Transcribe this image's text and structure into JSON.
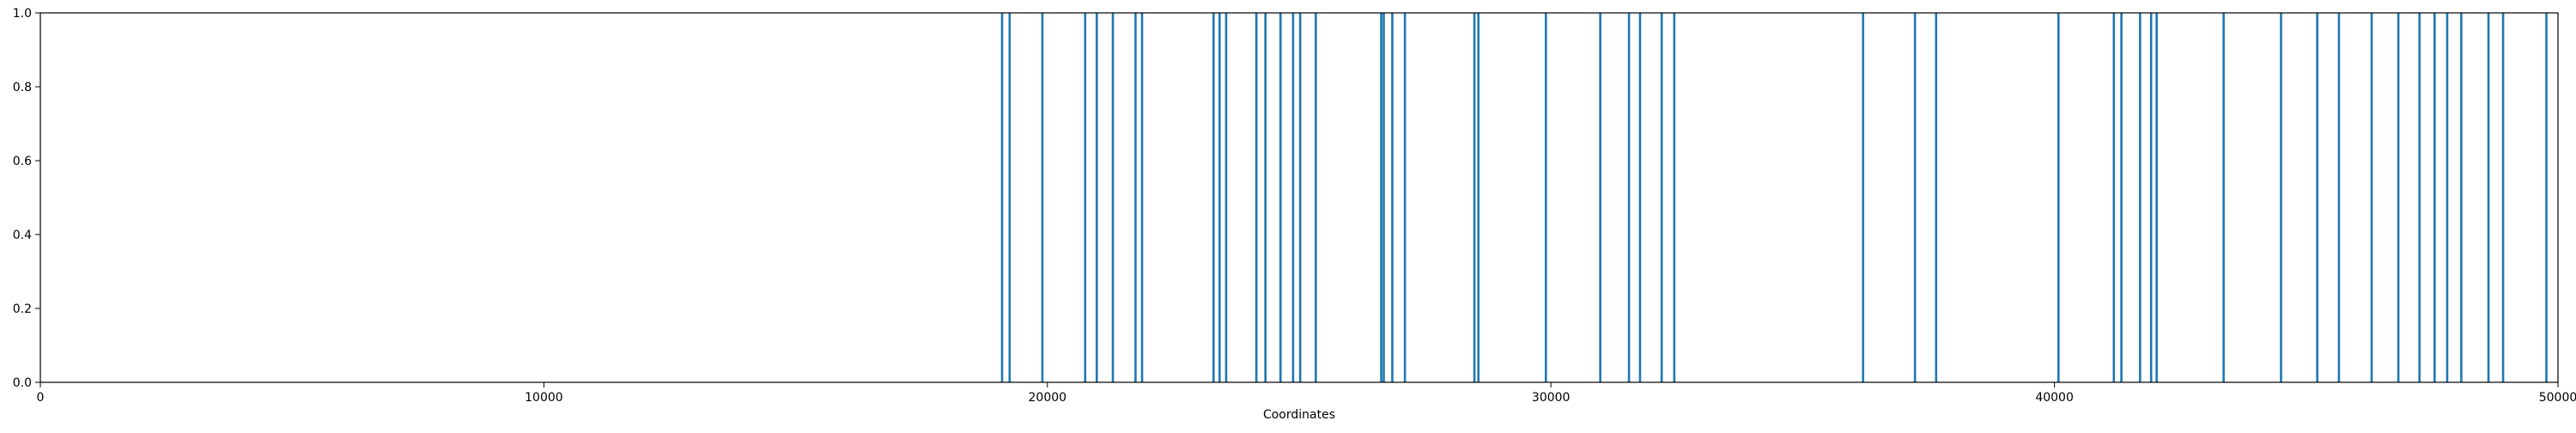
{
  "chart_data": {
    "type": "bar",
    "title": "",
    "xlabel": "Coordinates",
    "ylabel": "",
    "xlim": [
      0,
      50000
    ],
    "ylim": [
      0,
      1.0
    ],
    "x_ticks": [
      0,
      10000,
      20000,
      30000,
      40000,
      50000
    ],
    "x_tick_labels": [
      "0",
      "10000",
      "20000",
      "30000",
      "40000",
      "50000"
    ],
    "y_ticks": [
      0.0,
      0.2,
      0.4,
      0.6,
      0.8,
      1.0
    ],
    "y_tick_labels": [
      "0.0",
      "0.2",
      "0.4",
      "0.6",
      "0.8",
      "1.0"
    ],
    "grid": false,
    "legend": "none",
    "bar_color": "#1f77b4",
    "x": [
      19100,
      19250,
      19900,
      20750,
      20980,
      21300,
      21750,
      21880,
      23300,
      23420,
      23550,
      24150,
      24330,
      24630,
      24880,
      25020,
      25330,
      26630,
      26680,
      26850,
      27100,
      28480,
      28560,
      29900,
      30980,
      31550,
      31770,
      32200,
      32450,
      36200,
      37230,
      37650,
      40080,
      41180,
      41330,
      41700,
      41920,
      42030,
      43360,
      44500,
      45220,
      45650,
      46300,
      46830,
      47250,
      47550,
      47800,
      48080,
      48620,
      48910,
      49770
    ],
    "values": [
      1,
      1,
      1,
      1,
      1,
      1,
      1,
      1,
      1,
      1,
      1,
      1,
      1,
      1,
      1,
      1,
      1,
      1,
      1,
      1,
      1,
      1,
      1,
      1,
      1,
      1,
      1,
      1,
      1,
      1,
      1,
      1,
      1,
      1,
      1,
      1,
      1,
      1,
      1,
      1,
      1,
      1,
      1,
      1,
      1,
      1,
      1,
      1,
      1,
      1,
      1
    ]
  }
}
